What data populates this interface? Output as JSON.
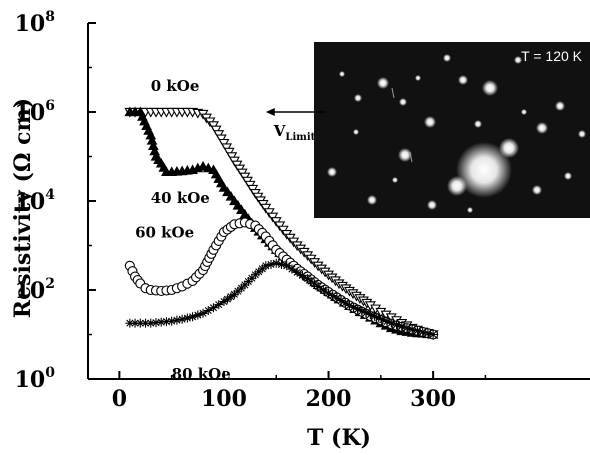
{
  "chart_data": {
    "type": "scatter",
    "xlabel": "T (K)",
    "ylabel": "Resistivity (Ω cm)",
    "xlim": [
      -30,
      450
    ],
    "ylim_log10": [
      0,
      8
    ],
    "y_scale": "log",
    "x_ticks": [
      0,
      100,
      200,
      300
    ],
    "y_ticks": [
      {
        "base": "10",
        "exp": "0",
        "value": 1
      },
      {
        "base": "10",
        "exp": "2",
        "value": 100
      },
      {
        "base": "10",
        "exp": "4",
        "value": 10000
      },
      {
        "base": "10",
        "exp": "6",
        "value": 1000000
      },
      {
        "base": "10",
        "exp": "8",
        "value": 100000000
      }
    ],
    "grid": false,
    "series": [
      {
        "name": "0 kOe",
        "marker": "triangle-down-open",
        "x": [
          10,
          20,
          30,
          40,
          50,
          60,
          70,
          80,
          90,
          100,
          110,
          120,
          130,
          140,
          150,
          160,
          170,
          180,
          190,
          200,
          210,
          220,
          230,
          240,
          250,
          260,
          270,
          280,
          290,
          300
        ],
        "y": [
          1000000,
          1000000,
          1000000,
          1000000,
          1000000,
          1000000,
          1000000,
          900000,
          500000,
          200000,
          80000,
          35000,
          15000,
          7000,
          3500,
          1800,
          1000,
          600,
          350,
          220,
          140,
          95,
          65,
          45,
          32,
          24,
          18,
          14,
          11.5,
          10
        ]
      },
      {
        "name": "40 kOe",
        "marker": "triangle-up-filled",
        "x": [
          10,
          20,
          30,
          35,
          40,
          45,
          50,
          60,
          70,
          80,
          90,
          100,
          110,
          120,
          130,
          140,
          150,
          160,
          170,
          180,
          190,
          200,
          210,
          220,
          230,
          240,
          250,
          260,
          270,
          280,
          290,
          300
        ],
        "y": [
          1000000,
          1000000,
          300000,
          100000,
          70000,
          45000,
          45000,
          47000,
          50000,
          60000,
          50000,
          20000,
          10000,
          5000,
          2500,
          1400,
          800,
          500,
          320,
          200,
          130,
          90,
          62,
          44,
          32,
          24,
          18,
          14,
          12,
          11,
          10.5,
          10
        ]
      },
      {
        "name": "60 kOe",
        "marker": "circle-open",
        "x": [
          10,
          15,
          20,
          25,
          30,
          40,
          50,
          60,
          70,
          80,
          90,
          100,
          110,
          120,
          130,
          140,
          150,
          160,
          170,
          180,
          190,
          200,
          220,
          240,
          260,
          280,
          300
        ],
        "y": [
          350,
          200,
          140,
          110,
          100,
          95,
          100,
          120,
          160,
          280,
          800,
          2000,
          3000,
          3300,
          2800,
          1600,
          800,
          480,
          300,
          200,
          130,
          90,
          45,
          26,
          17,
          13,
          10
        ]
      },
      {
        "name": "80 kOe",
        "marker": "asterisk",
        "x": [
          10,
          20,
          30,
          40,
          50,
          60,
          70,
          80,
          90,
          100,
          110,
          120,
          130,
          140,
          150,
          160,
          170,
          180,
          190,
          200,
          220,
          240,
          260,
          280,
          300
        ],
        "y": [
          18,
          18,
          18,
          19,
          20,
          22,
          25,
          30,
          40,
          55,
          80,
          130,
          220,
          350,
          400,
          350,
          250,
          180,
          120,
          85,
          45,
          28,
          18,
          13,
          10
        ]
      }
    ],
    "annotations": [
      {
        "text": "0 kOe",
        "T": 30,
        "rho": 3000000
      },
      {
        "text": "40 kOe",
        "T": 30,
        "rho": 9000
      },
      {
        "text": "60 kOe",
        "T": 15,
        "rho": 1500
      },
      {
        "text": "80 kOe",
        "T": 50,
        "rho": 1
      }
    ],
    "v_limit": {
      "letter": "V",
      "subscript": "Limit",
      "T": 140,
      "rho": 1000000
    }
  },
  "inset": {
    "label": "T = 120 K",
    "background": "#111111"
  },
  "colors": {
    "axis": "#000000",
    "marker": "#000000",
    "inset_spot": "#ffffff"
  }
}
